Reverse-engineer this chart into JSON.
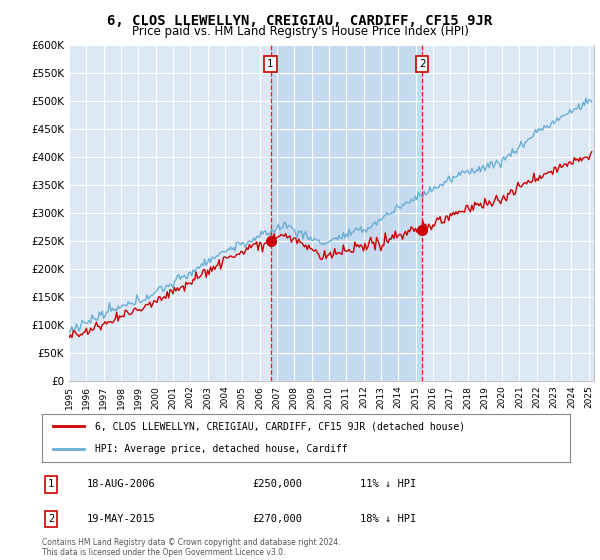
{
  "title": "6, CLOS LLEWELLYN, CREIGIAU, CARDIFF, CF15 9JR",
  "subtitle": "Price paid vs. HM Land Registry's House Price Index (HPI)",
  "title_fontsize": 10,
  "subtitle_fontsize": 8.5,
  "background_color": "#ffffff",
  "plot_bg_color": "#dce9f5",
  "highlight_color": "#c5d9ef",
  "grid_color": "#ffffff",
  "hpi_color": "#6aaed6",
  "price_color": "#cc0000",
  "marker_color": "#cc0000",
  "sale1_date": "18-AUG-2006",
  "sale1_price": 250000,
  "sale1_label": "1",
  "sale2_date": "19-MAY-2015",
  "sale2_price": 270000,
  "sale2_label": "2",
  "sale1_year": 2006.63,
  "sale2_year": 2015.38,
  "ylim": [
    0,
    600000
  ],
  "ytick_step": 50000,
  "legend_house": "6, CLOS LLEWELLYN, CREIGIAU, CARDIFF, CF15 9JR (detached house)",
  "legend_hpi": "HPI: Average price, detached house, Cardiff",
  "footer": "Contains HM Land Registry data © Crown copyright and database right 2024.\nThis data is licensed under the Open Government Licence v3.0."
}
